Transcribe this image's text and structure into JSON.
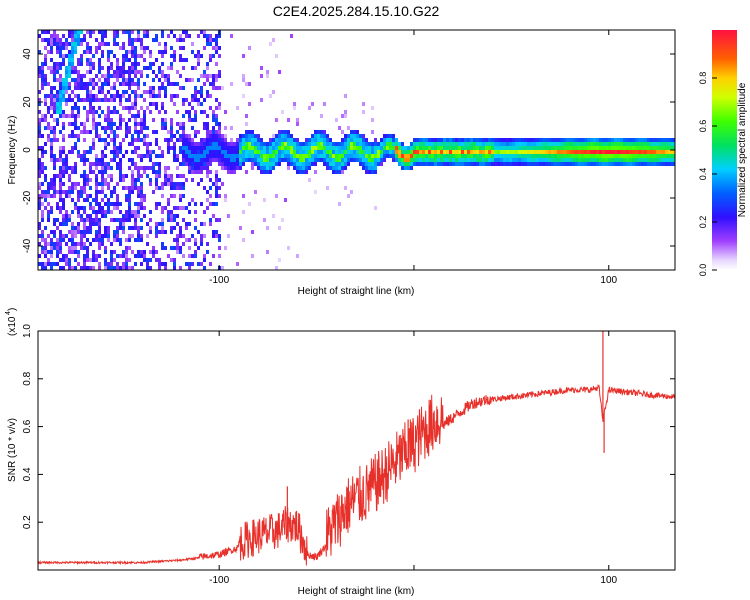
{
  "title": "C2E4.2025.284.15.10.G22",
  "chart_data": [
    {
      "type": "heatmap",
      "title": "C2E4.2025.284.15.10.G22",
      "xlabel": "Height of straight line (km)",
      "ylabel": "Frequency (Hz)",
      "xlim": [
        -193,
        134
      ],
      "ylim": [
        -50,
        50
      ],
      "x_ticks": [
        -100,
        0,
        100
      ],
      "x_tick_labels": [
        "-100",
        "",
        "100"
      ],
      "y_ticks": [
        -40,
        -20,
        0,
        20,
        40
      ],
      "y_tick_labels": [
        "-40",
        "-20",
        "0",
        "20",
        "40"
      ],
      "colorbar": {
        "label": "Normalized spectral amplitude",
        "range": [
          0.0,
          1.0
        ],
        "ticks": [
          0.0,
          0.2,
          0.4,
          0.6,
          0.8
        ],
        "tick_labels": [
          "0.0",
          "0.2",
          "0.4",
          "0.6",
          "0.8"
        ]
      },
      "features": [
        {
          "name": "main-signal-band",
          "x_range": [
            -120,
            134
          ],
          "center_freq_hz": 0,
          "peak_amplitude": 0.95
        },
        {
          "name": "diagonal-streak",
          "x_start": -183,
          "y_start": 18,
          "x_end": -173,
          "y_end": 50
        }
      ]
    },
    {
      "type": "line",
      "xlabel": "Height of straight line (km)",
      "ylabel": "SNR (10 * v/v)",
      "y_multiplier": "(x10^4)",
      "y_multiplier_base": "(x10",
      "y_multiplier_exp": "4",
      "y_multiplier_close": ")",
      "xlim": [
        -193,
        134
      ],
      "ylim": [
        0,
        1.0
      ],
      "x_ticks": [
        -100,
        0,
        100
      ],
      "x_tick_labels": [
        "-100",
        "",
        "100"
      ],
      "y_ticks": [
        0.2,
        0.4,
        0.6,
        0.8,
        1.0
      ],
      "y_tick_labels": [
        "0.2",
        "0.4",
        "0.6",
        "0.8",
        "1.0"
      ],
      "series": [
        {
          "name": "SNR",
          "color": "#e8302a",
          "x": [
            -193,
            -180,
            -160,
            -140,
            -120,
            -110,
            -100,
            -90,
            -80,
            -70,
            -65,
            -60,
            -55,
            -50,
            -45,
            -40,
            -35,
            -30,
            -25,
            -20,
            -15,
            -10,
            -5,
            0,
            5,
            10,
            15,
            20,
            25,
            30,
            40,
            50,
            60,
            70,
            80,
            90,
            95,
            97,
            100,
            110,
            120,
            134
          ],
          "y": [
            0.03,
            0.03,
            0.03,
            0.03,
            0.04,
            0.05,
            0.06,
            0.09,
            0.12,
            0.14,
            0.17,
            0.16,
            0.06,
            0.05,
            0.1,
            0.16,
            0.22,
            0.26,
            0.28,
            0.32,
            0.36,
            0.41,
            0.45,
            0.49,
            0.54,
            0.58,
            0.6,
            0.63,
            0.66,
            0.69,
            0.71,
            0.72,
            0.73,
            0.74,
            0.75,
            0.75,
            0.76,
            0.62,
            0.75,
            0.74,
            0.73,
            0.72
          ]
        }
      ],
      "spikes": [
        {
          "x": -65,
          "y": 0.35
        },
        {
          "x": -23,
          "y": 0.4
        },
        {
          "x": -3,
          "y": 0.63
        },
        {
          "x": 8,
          "y": 0.69
        },
        {
          "x": 97,
          "y": 1.0
        },
        {
          "x": 97.6,
          "y": 0.49
        }
      ]
    }
  ]
}
